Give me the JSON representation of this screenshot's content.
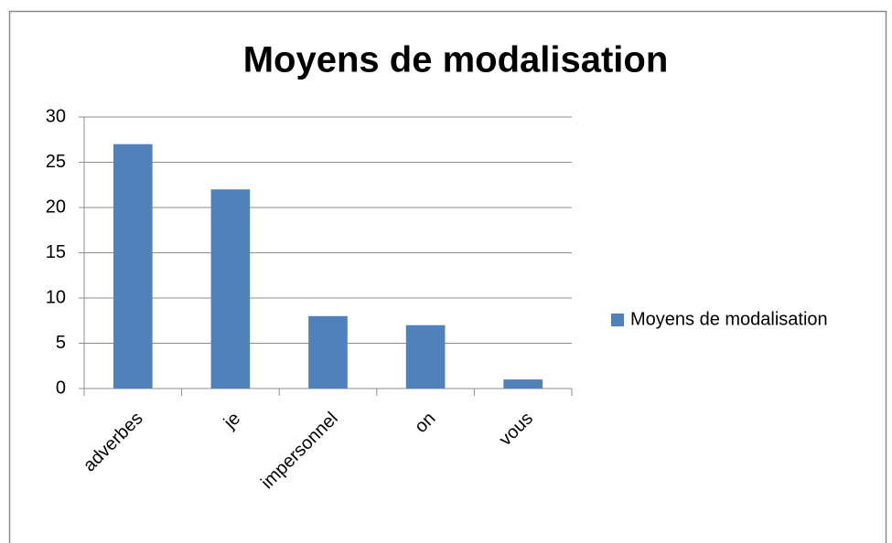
{
  "chart_data": {
    "type": "bar",
    "title": "Moyens de modalisation",
    "categories": [
      "adverbes",
      "je",
      "impersonnel",
      "on",
      "vous"
    ],
    "series": [
      {
        "name": "Moyens de modalisation",
        "color": "#4f81bd",
        "values": [
          27,
          22,
          8,
          7,
          1
        ]
      }
    ],
    "ylim": [
      0,
      30
    ],
    "yticks": [
      0,
      5,
      10,
      15,
      20,
      25,
      30
    ],
    "grid": true,
    "legend": "right"
  }
}
